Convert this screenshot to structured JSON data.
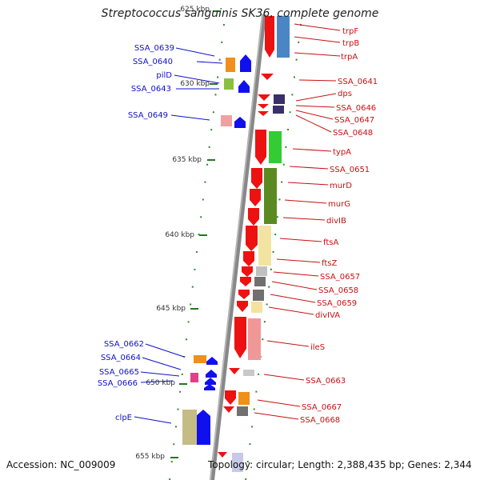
{
  "title": "Streptococcus sanguinis SK36, complete genome",
  "footer": {
    "accession": "Accession: NC_009009",
    "stats": "Topology: circular; Length: 2,388,435 bp; Genes: 2,344"
  },
  "colors": {
    "minus_label": "#1010c8",
    "plus_label": "#c81010",
    "plus_arrow": "#ee1111",
    "minus_arrow": "#1010ee",
    "axis_tick": "#227722"
  },
  "ruler_ticks": [
    "625 kbp",
    "630 kbp",
    "635 kbp",
    "640 kbp",
    "645 kbp",
    "650 kbp",
    "655 kbp"
  ],
  "left_labels": [
    "SSA_0639",
    "SSA_0640",
    "pilD",
    "SSA_0643",
    "SSA_0649",
    "SSA_0662",
    "SSA_0664",
    "SSA_0665",
    "SSA_0666",
    "clpE"
  ],
  "right_labels": [
    "trpF",
    "trpB",
    "trpA",
    "SSA_0641",
    "dps",
    "SSA_0646",
    "SSA_0647",
    "SSA_0648",
    "typA",
    "SSA_0651",
    "murD",
    "murG",
    "divIB",
    "ftsA",
    "ftsZ",
    "SSA_0657",
    "SSA_0658",
    "SSA_0659",
    "divIVA",
    "ileS",
    "SSA_0663",
    "SSA_0667",
    "SSA_0668"
  ]
}
